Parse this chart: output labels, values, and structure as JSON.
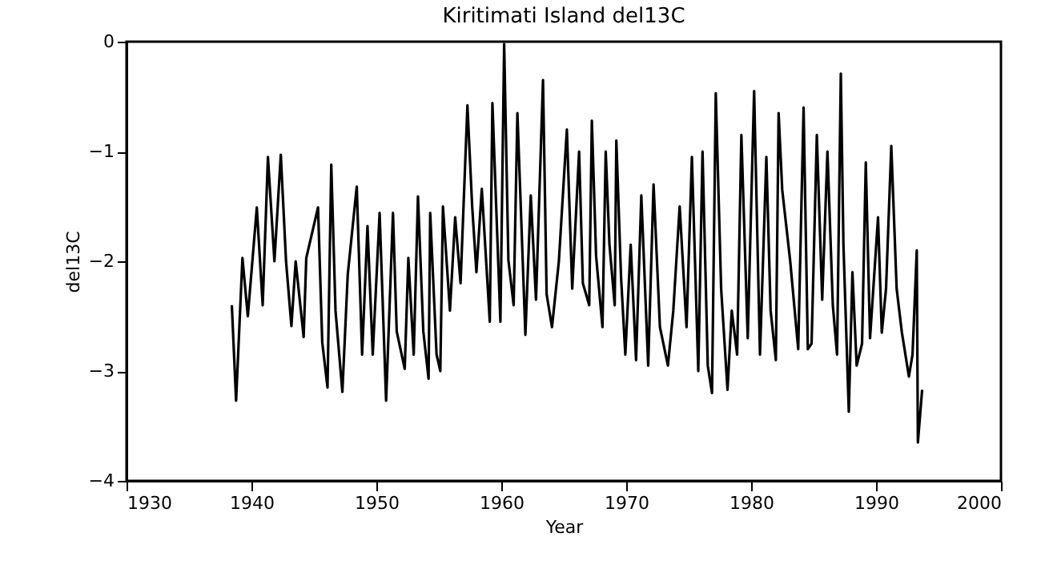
{
  "chart_data": {
    "type": "line",
    "title": "Kiritimati Island del13C",
    "xlabel": "Year",
    "ylabel": "del13C",
    "xlim": [
      1930,
      2000
    ],
    "xticks": [
      1930,
      1940,
      1950,
      1960,
      1970,
      1980,
      1990,
      2000
    ],
    "ylim": [
      -4,
      0
    ],
    "yticks": [
      -4,
      -3,
      -2,
      -1,
      0
    ],
    "grid": false,
    "marker": "none",
    "line_style": "solid",
    "series": [
      {
        "color": "#000000",
        "x": [
          1938.43,
          1938.77,
          1939.28,
          1939.71,
          1940.43,
          1940.9,
          1941.32,
          1941.84,
          1942.35,
          1942.77,
          1943.2,
          1943.54,
          1944.18,
          1944.39,
          1945.33,
          1945.67,
          1946.09,
          1946.39,
          1946.73,
          1947.28,
          1947.71,
          1948.43,
          1948.86,
          1949.29,
          1949.71,
          1950.26,
          1950.78,
          1951.33,
          1951.63,
          1952.27,
          1952.56,
          1952.99,
          1953.33,
          1953.76,
          1954.18,
          1954.31,
          1954.82,
          1955.12,
          1955.33,
          1955.89,
          1956.31,
          1956.74,
          1957.29,
          1957.67,
          1958.01,
          1958.44,
          1959.08,
          1959.29,
          1959.93,
          1960.23,
          1960.57,
          1960.99,
          1961.29,
          1961.93,
          1962.36,
          1962.78,
          1963.34,
          1963.63,
          1964.06,
          1964.61,
          1965.25,
          1965.68,
          1966.23,
          1966.53,
          1967.04,
          1967.25,
          1967.59,
          1968.1,
          1968.36,
          1968.66,
          1969.08,
          1969.21,
          1969.59,
          1969.93,
          1970.36,
          1970.79,
          1971.21,
          1971.76,
          1972.19,
          1972.7,
          1973.34,
          1973.77,
          1974.28,
          1974.83,
          1975.26,
          1975.77,
          1976.11,
          1976.53,
          1976.87,
          1977.17,
          1977.6,
          1978.11,
          1978.45,
          1978.88,
          1979.22,
          1979.73,
          1980.24,
          1980.71,
          1981.22,
          1981.56,
          1981.98,
          1982.2,
          1982.49,
          1983.13,
          1983.77,
          1984.2,
          1984.54,
          1984.84,
          1985.26,
          1985.69,
          1986.11,
          1986.54,
          1986.88,
          1987.18,
          1987.39,
          1987.82,
          1988.11,
          1988.45,
          1988.88,
          1989.18,
          1989.52,
          1990.16,
          1990.46,
          1990.8,
          1991.22,
          1991.65,
          1992.07,
          1992.63,
          1992.92,
          1993.26,
          1993.35,
          1993.69
        ],
        "values": [
          -2.4,
          -3.27,
          -1.97,
          -2.5,
          -1.51,
          -2.4,
          -1.05,
          -2.0,
          -1.03,
          -2.0,
          -2.59,
          -2.0,
          -2.69,
          -1.97,
          -1.51,
          -2.74,
          -3.15,
          -1.12,
          -2.45,
          -3.19,
          -2.12,
          -1.32,
          -2.85,
          -1.68,
          -2.85,
          -1.56,
          -3.27,
          -1.56,
          -2.64,
          -2.98,
          -1.97,
          -2.85,
          -1.41,
          -2.64,
          -3.07,
          -1.56,
          -2.85,
          -3.0,
          -1.5,
          -2.45,
          -1.6,
          -2.2,
          -0.58,
          -1.5,
          -2.1,
          -1.34,
          -2.55,
          -0.56,
          -2.55,
          -0.02,
          -1.99,
          -2.4,
          -0.65,
          -2.67,
          -1.4,
          -2.35,
          -0.35,
          -2.3,
          -2.6,
          -2.0,
          -0.8,
          -2.25,
          -1.0,
          -2.2,
          -2.4,
          -0.72,
          -1.95,
          -2.6,
          -1.0,
          -1.85,
          -2.4,
          -0.9,
          -2.15,
          -2.85,
          -1.85,
          -2.9,
          -1.4,
          -2.95,
          -1.3,
          -2.6,
          -2.95,
          -2.45,
          -1.5,
          -2.6,
          -1.05,
          -3.0,
          -1.0,
          -2.95,
          -3.2,
          -0.47,
          -2.25,
          -3.17,
          -2.45,
          -2.85,
          -0.85,
          -2.7,
          -0.45,
          -2.85,
          -1.05,
          -2.45,
          -2.9,
          -0.65,
          -1.35,
          -2.0,
          -2.8,
          -0.6,
          -2.8,
          -2.75,
          -0.85,
          -2.35,
          -1.0,
          -2.4,
          -2.85,
          -0.29,
          -1.85,
          -3.37,
          -2.1,
          -2.95,
          -2.75,
          -1.1,
          -2.7,
          -1.6,
          -2.65,
          -2.25,
          -0.95,
          -2.25,
          -2.65,
          -3.05,
          -2.85,
          -1.9,
          -3.65,
          -3.17
        ]
      }
    ]
  }
}
